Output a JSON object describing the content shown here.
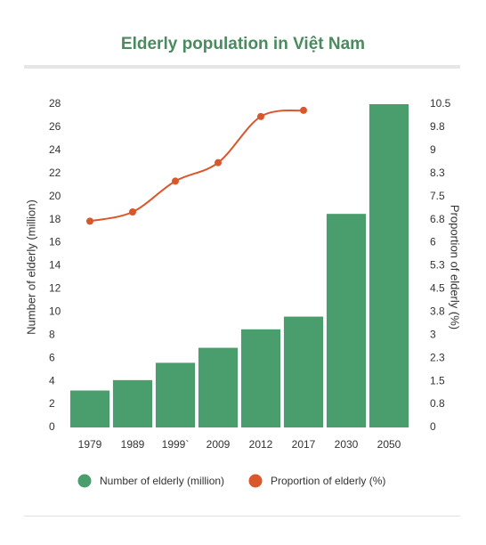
{
  "chart_data": {
    "type": "combo",
    "title": "Elderly population in Việt Nam",
    "categories": [
      "1979",
      "1989",
      "1999`",
      "2009",
      "2012",
      "2017",
      "2030",
      "2050"
    ],
    "series": [
      {
        "name": "Number of elderly (million)",
        "type": "bar",
        "color": "#4a9e6e",
        "values": [
          3.2,
          4.1,
          5.6,
          6.9,
          8.5,
          9.6,
          18.5,
          28
        ]
      },
      {
        "name": "Proportion of elderly (%)",
        "type": "line",
        "axis": "y2",
        "color": "#d9572b",
        "values": [
          6.7,
          7.0,
          8.0,
          8.6,
          10.1,
          10.3,
          null,
          null
        ]
      }
    ],
    "ylabel": "Number of elderly (million)",
    "y2label": "Proportion of elderly (%)",
    "ylim": [
      0,
      28
    ],
    "yticks": [
      0,
      2,
      4,
      6,
      8,
      10,
      12,
      14,
      16,
      18,
      20,
      22,
      24,
      26,
      28
    ],
    "y2lim": [
      0,
      10.5
    ],
    "y2ticks": [
      0,
      {
        "value": 0.75,
        "label": "0.8"
      },
      1.5,
      {
        "value": 2.25,
        "label": "2.3"
      },
      3,
      {
        "value": 3.75,
        "label": "3.8"
      },
      4.5,
      {
        "value": 5.25,
        "label": "5.3"
      },
      6,
      {
        "value": 6.75,
        "label": "6.8"
      },
      7.5,
      {
        "value": 8.25,
        "label": "8.3"
      },
      9,
      {
        "value": 9.75,
        "label": "9.8"
      },
      10.5
    ],
    "grid": false,
    "legend": "bottom"
  }
}
